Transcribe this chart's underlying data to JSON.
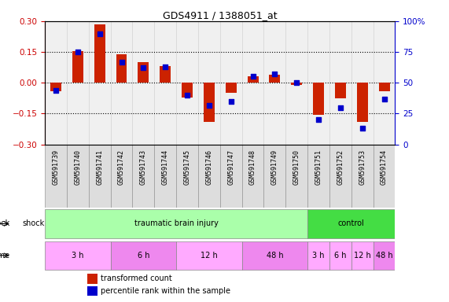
{
  "title": "GDS4911 / 1388051_at",
  "samples": [
    "GSM591739",
    "GSM591740",
    "GSM591741",
    "GSM591742",
    "GSM591743",
    "GSM591744",
    "GSM591745",
    "GSM591746",
    "GSM591747",
    "GSM591748",
    "GSM591749",
    "GSM591750",
    "GSM591751",
    "GSM591752",
    "GSM591753",
    "GSM591754"
  ],
  "bar_values": [
    -0.04,
    0.155,
    0.285,
    0.14,
    0.1,
    0.08,
    -0.07,
    -0.19,
    -0.05,
    0.03,
    0.04,
    -0.01,
    -0.155,
    -0.075,
    -0.19,
    -0.04
  ],
  "dot_values": [
    44,
    75,
    90,
    67,
    62,
    63,
    40,
    32,
    35,
    55,
    57,
    50,
    20,
    30,
    13,
    37
  ],
  "ylim_left": [
    -0.3,
    0.3
  ],
  "ylim_right": [
    0,
    100
  ],
  "yticks_left": [
    -0.3,
    -0.15,
    0.0,
    0.15,
    0.3
  ],
  "yticks_right": [
    0,
    25,
    50,
    75,
    100
  ],
  "hlines": [
    0.15,
    0.0,
    -0.15
  ],
  "bar_color": "#cc2200",
  "dot_color": "#0000cc",
  "bg_color": "#ffffff",
  "plot_bg": "#f0f0f0",
  "shock_row": [
    {
      "label": "traumatic brain injury",
      "start": 0,
      "end": 12,
      "color": "#aaffaa"
    },
    {
      "label": "control",
      "start": 12,
      "end": 16,
      "color": "#44dd44"
    }
  ],
  "time_row": [
    {
      "label": "3 h",
      "start": 0,
      "end": 3,
      "color": "#ffaaff"
    },
    {
      "label": "6 h",
      "start": 3,
      "end": 6,
      "color": "#ee88ee"
    },
    {
      "label": "12 h",
      "start": 6,
      "end": 9,
      "color": "#ffaaff"
    },
    {
      "label": "48 h",
      "start": 9,
      "end": 12,
      "color": "#ee88ee"
    },
    {
      "label": "3 h",
      "start": 12,
      "end": 13,
      "color": "#ffaaff"
    },
    {
      "label": "6 h",
      "start": 13,
      "end": 14,
      "color": "#ffaaff"
    },
    {
      "label": "12 h",
      "start": 14,
      "end": 15,
      "color": "#ffaaff"
    },
    {
      "label": "48 h",
      "start": 15,
      "end": 16,
      "color": "#ee88ee"
    }
  ],
  "legend_items": [
    {
      "label": "transformed count",
      "color": "#cc2200",
      "marker": "s"
    },
    {
      "label": "percentile rank within the sample",
      "color": "#0000cc",
      "marker": "s"
    }
  ],
  "xlabel_color": "#000000",
  "right_axis_color": "#0000cc"
}
